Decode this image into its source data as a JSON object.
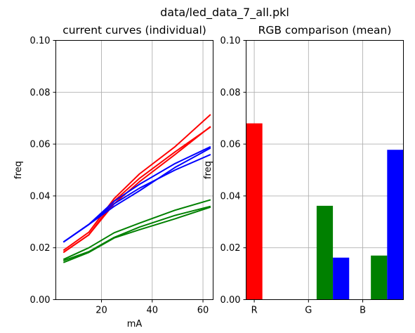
{
  "figure": {
    "suptitle": "data/led_data_7_all.pkl"
  },
  "chart_data": [
    {
      "type": "line",
      "title": "current curves (individual)",
      "xlabel": "mA",
      "ylabel": "freq",
      "xlim": [
        2,
        64
      ],
      "ylim": [
        0,
        0.1
      ],
      "xticks": [
        20,
        40,
        60
      ],
      "yticks": [
        0.0,
        0.02,
        0.04,
        0.06,
        0.08,
        0.1
      ],
      "grid": true,
      "series": [
        {
          "color": "#ff0000",
          "x": [
            5,
            15,
            25,
            35,
            49,
            63
          ],
          "y": [
            0.0182,
            0.025,
            0.038,
            0.0468,
            0.057,
            0.0666
          ]
        },
        {
          "color": "#ff0000",
          "x": [
            5,
            15,
            25,
            35,
            49,
            63
          ],
          "y": [
            0.019,
            0.026,
            0.039,
            0.0485,
            0.059,
            0.0714
          ]
        },
        {
          "color": "#ff0000",
          "x": [
            5,
            15,
            25,
            35,
            49,
            63
          ],
          "y": [
            0.0182,
            0.025,
            0.037,
            0.0455,
            0.056,
            0.0668
          ]
        },
        {
          "color": "#0000ff",
          "x": [
            5,
            15,
            25,
            35,
            49,
            63
          ],
          "y": [
            0.0222,
            0.029,
            0.037,
            0.043,
            0.05,
            0.056
          ]
        },
        {
          "color": "#0000ff",
          "x": [
            5,
            15,
            25,
            35,
            49,
            63
          ],
          "y": [
            0.0222,
            0.029,
            0.038,
            0.0445,
            0.0525,
            0.059
          ]
        },
        {
          "color": "#0000ff",
          "x": [
            5,
            15,
            25,
            35,
            49,
            63
          ],
          "y": [
            0.0222,
            0.029,
            0.036,
            0.042,
            0.051,
            0.0585
          ]
        },
        {
          "color": "#008000",
          "x": [
            5,
            15,
            25,
            35,
            49,
            63
          ],
          "y": [
            0.0143,
            0.0182,
            0.0238,
            0.027,
            0.0312,
            0.0357
          ]
        },
        {
          "color": "#008000",
          "x": [
            5,
            15,
            25,
            35,
            49,
            63
          ],
          "y": [
            0.0155,
            0.02,
            0.0258,
            0.0295,
            0.0345,
            0.0385
          ]
        },
        {
          "color": "#008000",
          "x": [
            5,
            15,
            25,
            35,
            49,
            63
          ],
          "y": [
            0.015,
            0.0185,
            0.024,
            0.028,
            0.0325,
            0.036
          ]
        }
      ]
    },
    {
      "type": "bar",
      "title": "RGB comparison (mean)",
      "xlabel": "",
      "ylabel": "freq",
      "categories": [
        "R",
        "G",
        "B"
      ],
      "ylim": [
        0,
        0.1
      ],
      "yticks": [
        0.0,
        0.02,
        0.04,
        0.06,
        0.08,
        0.1
      ],
      "grid": true,
      "bars": [
        {
          "category": "R",
          "offset": 0,
          "color": "#ff0000",
          "value": 0.068
        },
        {
          "category": "G",
          "offset": 0.3,
          "color": "#008000",
          "value": 0.0362
        },
        {
          "category": "G",
          "offset": 0.6,
          "color": "#0000ff",
          "value": 0.0162
        },
        {
          "category": "B",
          "offset": 0.3,
          "color": "#008000",
          "value": 0.017
        },
        {
          "category": "B",
          "offset": 0.6,
          "color": "#0000ff",
          "value": 0.0578
        }
      ]
    }
  ]
}
